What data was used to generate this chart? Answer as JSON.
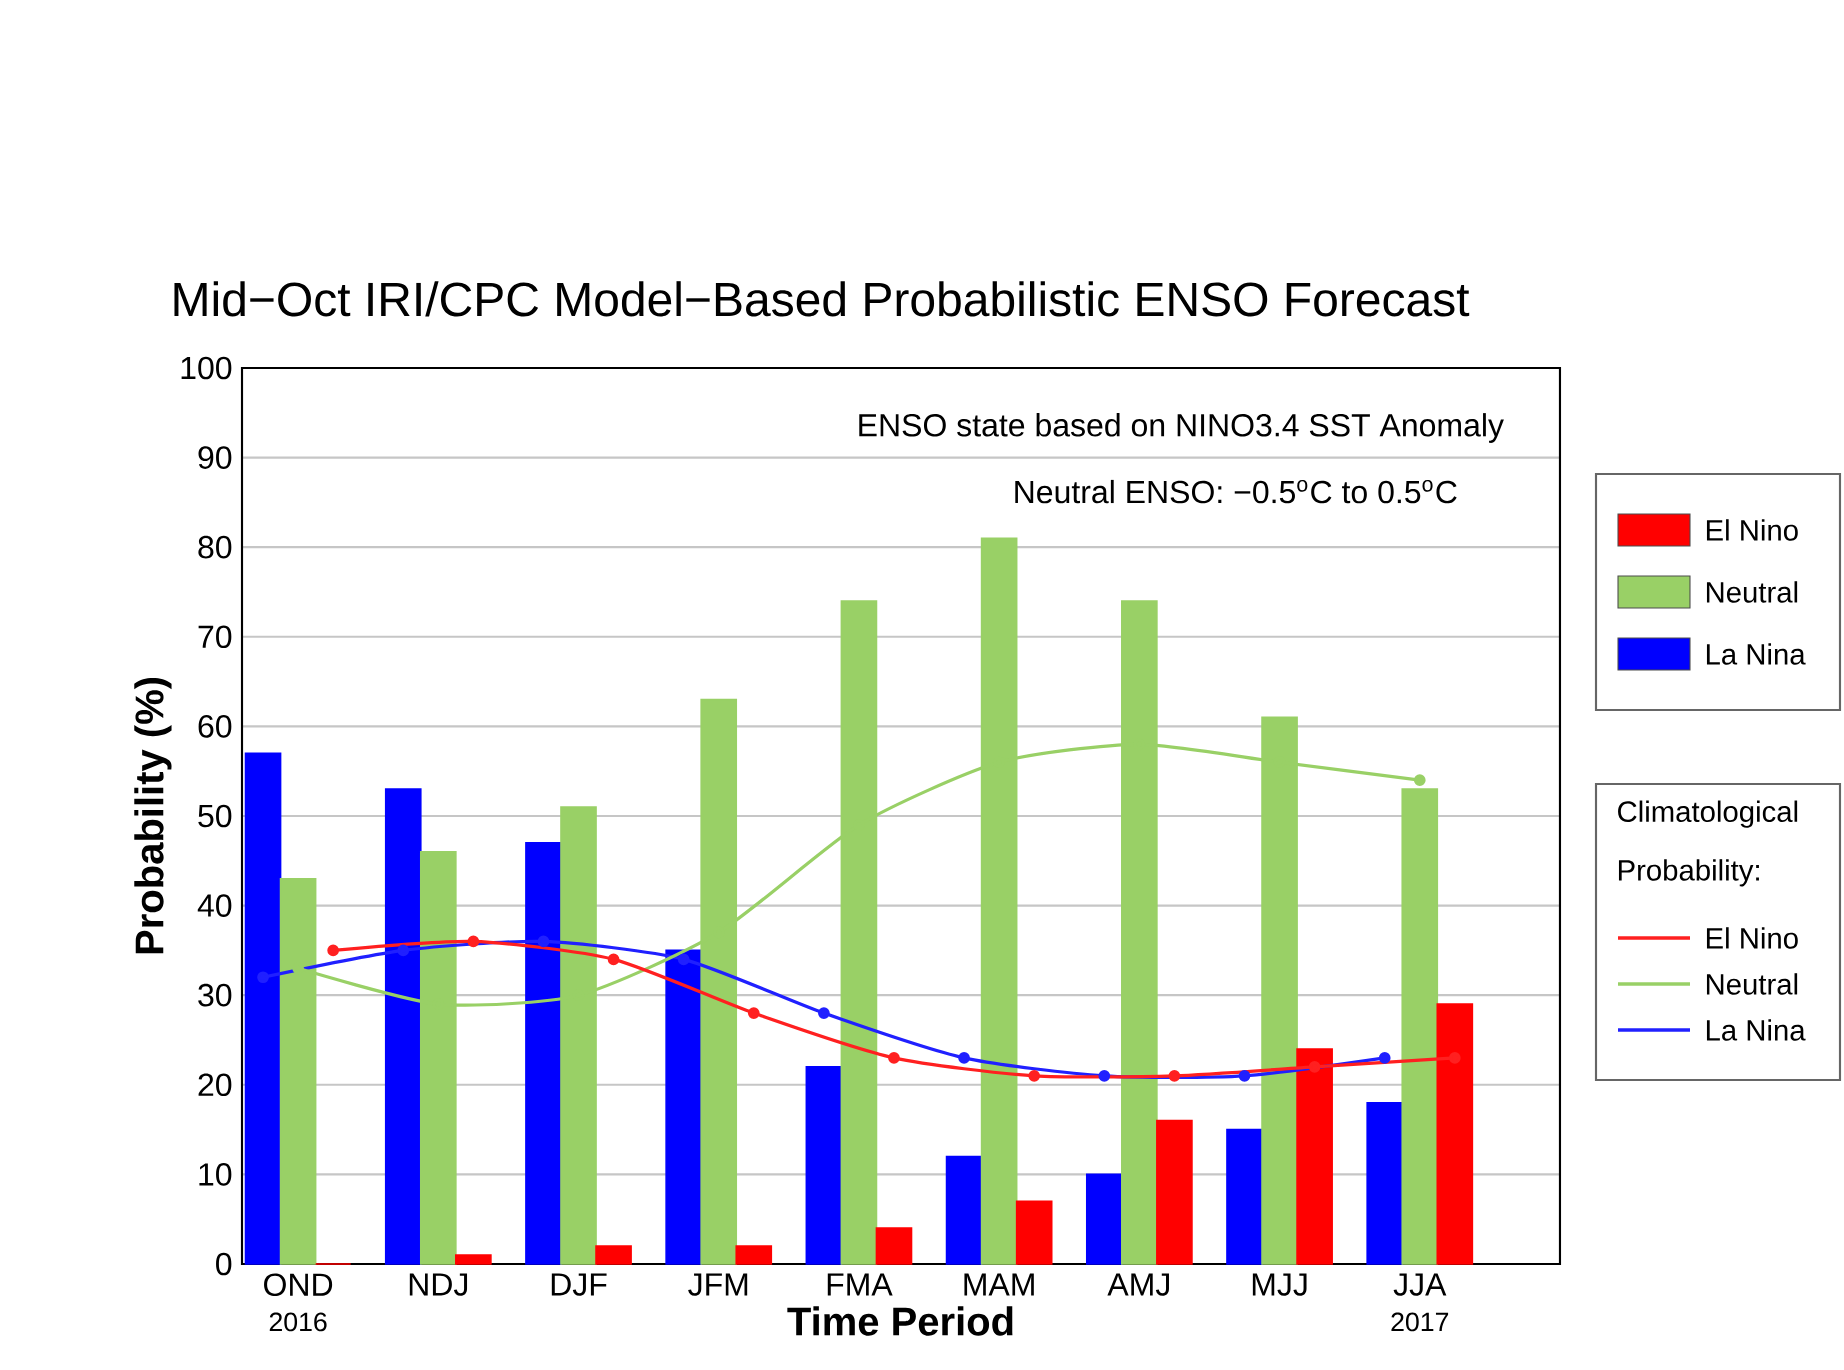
{
  "chart_data": {
    "type": "bar",
    "title": "Mid−Oct IRI/CPC Model−Based Probabilistic ENSO Forecast",
    "xlabel": "Time Period",
    "ylabel": "Probability (%)",
    "legend_title": "Climatological Probability:",
    "categories": [
      "OND",
      "NDJ",
      "DJF",
      "JFM",
      "FMA",
      "MAM",
      "AMJ",
      "MJJ",
      "JJA"
    ],
    "series": [
      {
        "name": "La Nina",
        "color": "#0000ff",
        "values": [
          57,
          53,
          47,
          35,
          22,
          12,
          10,
          15,
          18
        ]
      },
      {
        "name": "Neutral",
        "color": "#99d066",
        "values": [
          43,
          46,
          51,
          63,
          74,
          81,
          74,
          61,
          53
        ]
      },
      {
        "name": "El Nino",
        "color": "#ff0000",
        "values": [
          0,
          1,
          2,
          2,
          4,
          7,
          16,
          24,
          29
        ]
      },
      {
        "name": "La Nina",
        "type": "line",
        "color": "#2020ff",
        "values": [
          32,
          35,
          36,
          34,
          28,
          23,
          21,
          21,
          23
        ]
      },
      {
        "name": "Neutral",
        "type": "line",
        "color": "#99d066",
        "values": [
          33,
          29,
          30,
          37,
          49,
          56,
          58,
          56,
          54
        ]
      },
      {
        "name": "El Nino",
        "type": "line",
        "color": "#ff2020",
        "values": [
          35,
          36,
          34,
          28,
          23,
          21,
          21,
          22,
          23
        ]
      }
    ],
    "ylim": [
      0,
      100
    ],
    "yticks": [
      0,
      10,
      20,
      30,
      40,
      50,
      60,
      70,
      80,
      90,
      100
    ],
    "grid": "y",
    "legend": "right",
    "marker": "circle",
    "annotations": [
      "ENSO state based on NINO3.4 SST Anomaly",
      "Neutral ENSO: −0.5$^{o}$C to 0.5$^{o}$C",
      "2016",
      "2017"
    ]
  }
}
